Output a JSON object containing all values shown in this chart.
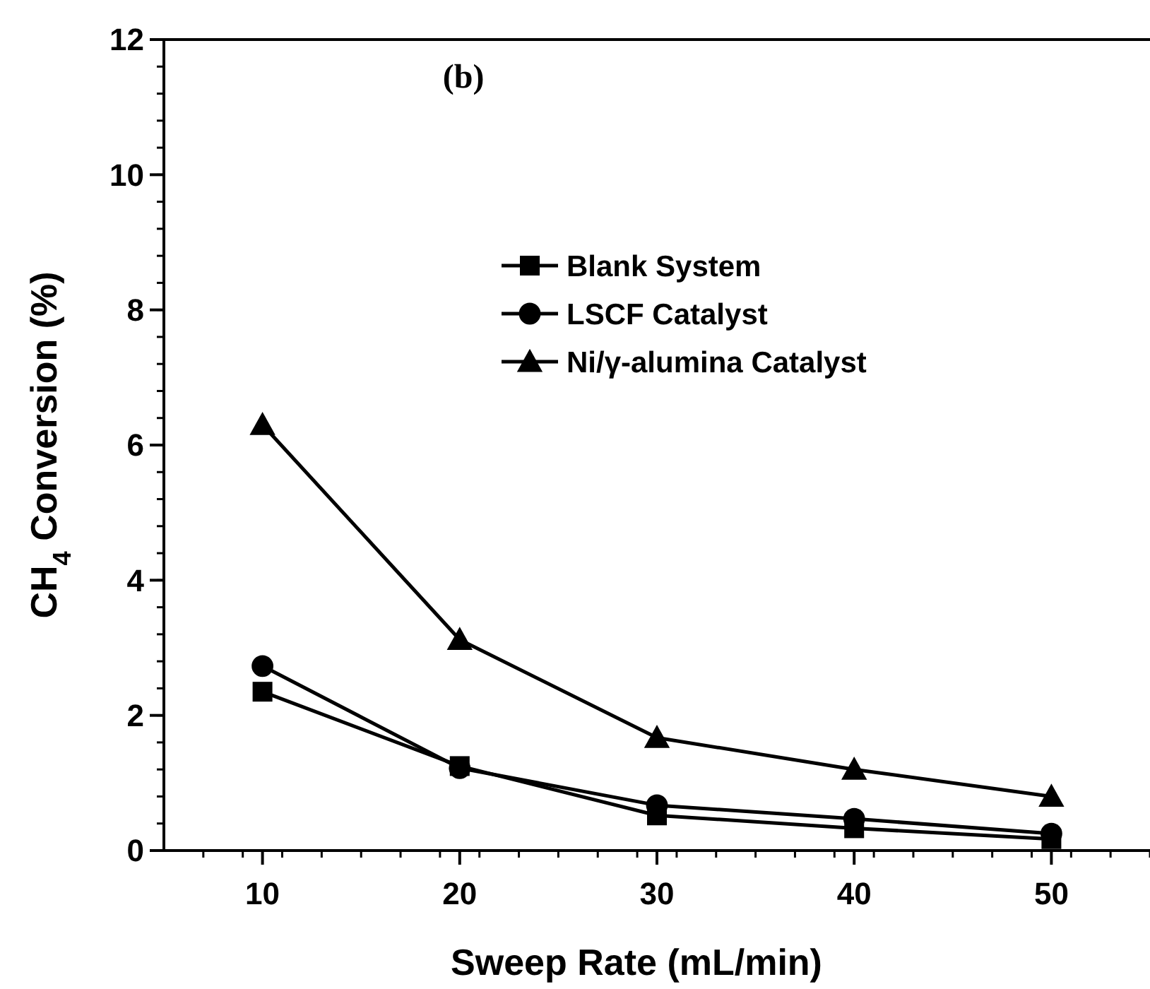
{
  "chart_data": {
    "type": "line",
    "xlabel": "Sweep Rate (mL/min)",
    "ylabel": "CH$_{4}$ Conversion (%)",
    "annotations": [
      "(b)"
    ],
    "x": [
      10,
      20,
      30,
      40,
      50
    ],
    "xlim": [
      5,
      55
    ],
    "xticks": [
      10,
      20,
      30,
      40,
      50
    ],
    "ylim": [
      0,
      12
    ],
    "yticks": [
      0,
      2,
      4,
      6,
      8,
      10,
      12
    ],
    "legend": "top right",
    "grid": false,
    "line_style": "solid",
    "series": [
      {
        "name": "Blank System",
        "color": "#000000",
        "marker": "square",
        "values": [
          2.35,
          1.25,
          0.52,
          0.33,
          0.17
        ]
      },
      {
        "name": "LSCF Catalyst",
        "color": "#000000",
        "marker": "circle",
        "values": [
          2.73,
          1.22,
          0.67,
          0.47,
          0.25
        ]
      },
      {
        "name": "Ni/γ-alumina Catalyst",
        "color": "#000000",
        "marker": "triangle",
        "values": [
          6.3,
          3.12,
          1.67,
          1.2,
          0.8
        ]
      }
    ]
  }
}
